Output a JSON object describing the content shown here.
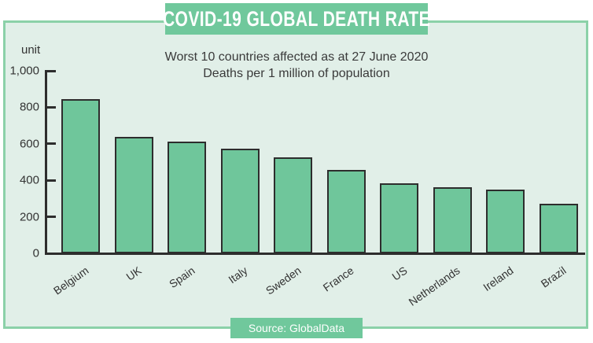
{
  "title": "COVID-19 GLOBAL DEATH RATE",
  "subtitle_line1": "Worst 10 countries affected as at 27 June 2020",
  "subtitle_line2": "Deaths per 1 million of population",
  "source": "Source: GlobalData",
  "colors": {
    "bar_fill": "#6fc69b",
    "bar_border": "#2d2d2d",
    "banner_bg": "#70c89c",
    "panel_bg": "#e1efe8",
    "frame_border": "#8bd1a8",
    "text_dark": "#3a3a3a"
  },
  "chart_data": {
    "type": "bar",
    "title": "COVID-19 GLOBAL DEATH RATE",
    "subtitle": "Worst 10 countries affected as at 27 June 2020 — Deaths per 1 million of population",
    "categories": [
      "Belgium",
      "UK",
      "Spain",
      "Italy",
      "Sweden",
      "France",
      "US",
      "Netherlands",
      "Ireland",
      "Brazil"
    ],
    "values": [
      845,
      640,
      610,
      575,
      525,
      455,
      385,
      360,
      350,
      270
    ],
    "xlabel": "",
    "ylabel": "unit",
    "ylim": [
      0,
      1000
    ],
    "yticks": [
      0,
      200,
      400,
      600,
      800,
      1000
    ],
    "ytick_labels": [
      "0",
      "200",
      "400",
      "600",
      "800",
      "1,000"
    ],
    "grid": false,
    "legend": false,
    "source": "Source: GlobalData"
  }
}
